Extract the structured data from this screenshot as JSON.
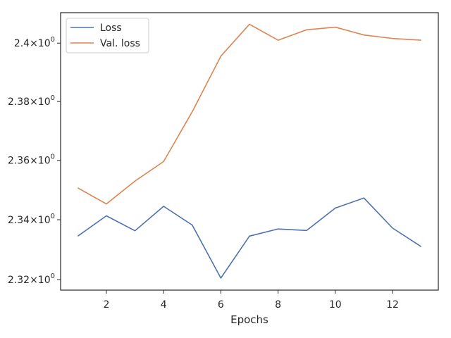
{
  "chart_data": {
    "type": "line",
    "xlabel": "Epochs",
    "ylabel": "",
    "ylog": true,
    "x": [
      1,
      2,
      3,
      4,
      5,
      6,
      7,
      8,
      9,
      10,
      11,
      12,
      13
    ],
    "xlim": [
      0.4,
      13.6
    ],
    "ylim": [
      2.3165,
      2.4105
    ],
    "xticks": [
      2,
      4,
      6,
      8,
      10,
      12
    ],
    "xtick_labels": [
      "2",
      "4",
      "6",
      "8",
      "10",
      "12"
    ],
    "yticks": [
      2.32,
      2.34,
      2.36,
      2.38,
      2.4
    ],
    "ytick_labels": [
      {
        "mantissa": "2.32",
        "base": "10",
        "exp": "0"
      },
      {
        "mantissa": "2.34",
        "base": "10",
        "exp": "0"
      },
      {
        "mantissa": "2.36",
        "base": "10",
        "exp": "0"
      },
      {
        "mantissa": "2.38",
        "base": "10",
        "exp": "0"
      },
      {
        "mantissa": "2.4",
        "base": "10",
        "exp": "0"
      }
    ],
    "grid": false,
    "legend_position": "top-left",
    "series": [
      {
        "name": "Loss",
        "color": "#4c72b0",
        "values": [
          2.3345,
          2.3413,
          2.3363,
          2.3445,
          2.3382,
          2.3205,
          2.3345,
          2.3369,
          2.3364,
          2.3439,
          2.3473,
          2.3372,
          2.331
        ]
      },
      {
        "name": "Val. loss",
        "color": "#dd8452",
        "values": [
          2.3507,
          2.3453,
          2.353,
          2.3596,
          2.3765,
          2.3955,
          2.4065,
          2.401,
          2.4046,
          2.4055,
          2.4028,
          2.4016,
          2.401
        ]
      }
    ]
  }
}
